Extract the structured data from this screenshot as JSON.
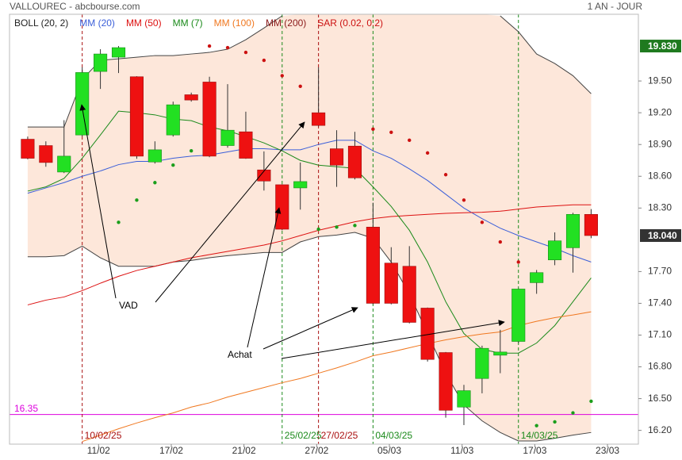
{
  "chart_data": {
    "type": "candlestick",
    "title": "VALLOUREC - abcbourse.com",
    "subtitle": "1 AN - JOUR",
    "categories": [
      null,
      null,
      null,
      null,
      null,
      null,
      null,
      null,
      null,
      null,
      null,
      null,
      null,
      null,
      null,
      null,
      null,
      null,
      null,
      null,
      null,
      null,
      null,
      null,
      null,
      null,
      null,
      null,
      null,
      null,
      null,
      null
    ],
    "open": [
      18.95,
      18.89,
      18.64,
      18.99,
      19.59,
      19.725,
      19.54,
      18.735,
      18.99,
      19.37,
      19.49,
      18.89,
      19.02,
      18.66,
      18.52,
      18.49,
      19.2,
      18.86,
      18.885,
      18.12,
      17.78,
      17.75,
      17.355,
      16.935,
      16.42,
      16.69,
      16.91,
      17.04,
      17.595,
      17.81,
      17.925,
      18.24
    ],
    "high": [
      18.975,
      18.93,
      19.13,
      19.63,
      19.8,
      19.83,
      19.545,
      18.93,
      19.305,
      19.39,
      19.54,
      19.47,
      19.21,
      18.835,
      18.525,
      18.73,
      19.63,
      19.035,
      19.02,
      18.35,
      17.93,
      17.94,
      17.36,
      16.94,
      16.63,
      17.0,
      17.15,
      17.54,
      17.715,
      18.07,
      18.255,
      18.29
    ],
    "low": [
      18.76,
      18.69,
      18.63,
      18.975,
      19.425,
      19.575,
      18.765,
      18.72,
      18.975,
      19.305,
      18.78,
      18.87,
      18.765,
      18.465,
      18.09,
      18.285,
      19.07,
      18.5,
      18.57,
      17.39,
      17.39,
      17.21,
      16.85,
      16.32,
      16.25,
      16.55,
      16.74,
      17.025,
      17.49,
      17.76,
      17.69,
      18.015
    ],
    "close": [
      18.77,
      18.73,
      18.79,
      19.58,
      19.755,
      19.815,
      18.79,
      18.85,
      19.275,
      19.32,
      18.79,
      19.035,
      18.77,
      18.555,
      18.1,
      18.55,
      19.08,
      18.705,
      18.585,
      17.4,
      17.4,
      17.22,
      16.87,
      16.39,
      16.575,
      16.975,
      16.94,
      17.535,
      17.69,
      17.99,
      18.24,
      18.04
    ],
    "up_color": "#22e022",
    "down_color": "#ee1111",
    "bollinger": {
      "name": "BOLL (20, 2)",
      "text_color": "#222",
      "color": "#444",
      "fill": "#fde7da",
      "upper": [
        19.065,
        19.065,
        19.065,
        19.515,
        19.695,
        19.71,
        19.725,
        19.74,
        19.74,
        19.755,
        19.77,
        19.8,
        19.89,
        20.0,
        20.115,
        null,
        null,
        null,
        null,
        null,
        null,
        null,
        null,
        null,
        null,
        null,
        20.115,
        19.965,
        19.755,
        19.665,
        19.55,
        19.38
      ],
      "lower": [
        17.84,
        17.84,
        17.85,
        17.94,
        17.83,
        17.75,
        17.75,
        17.75,
        17.79,
        17.805,
        17.83,
        17.85,
        17.865,
        17.88,
        17.88,
        17.98,
        18.03,
        18.045,
        18.07,
        18.015,
        17.79,
        17.49,
        17.115,
        16.74,
        16.44,
        16.29,
        16.18,
        16.1,
        16.1,
        16.125,
        16.155,
        16.18
      ]
    },
    "series": [
      {
        "name": "MM (20)",
        "color": "#3b5fd9",
        "values": [
          18.44,
          18.49,
          18.54,
          18.6,
          18.65,
          18.71,
          18.74,
          18.74,
          18.77,
          18.79,
          18.8,
          18.83,
          18.86,
          18.86,
          18.85,
          18.85,
          18.9,
          18.94,
          18.94,
          18.84,
          18.77,
          18.67,
          18.56,
          18.43,
          18.3,
          18.2,
          18.11,
          18.04,
          17.98,
          17.92,
          17.85,
          17.79
        ]
      },
      {
        "name": "MM (50)",
        "color": "#dd1111",
        "values": [
          17.385,
          17.43,
          17.46,
          17.52,
          17.59,
          17.655,
          17.71,
          17.75,
          17.79,
          17.83,
          17.86,
          17.89,
          17.92,
          17.95,
          17.99,
          18.04,
          18.09,
          18.13,
          18.17,
          18.2,
          18.22,
          18.23,
          18.24,
          18.25,
          18.255,
          18.26,
          18.27,
          18.29,
          18.31,
          18.32,
          18.33,
          18.33
        ]
      },
      {
        "name": "MM (7)",
        "color": "#1b8a1b",
        "values": [
          18.46,
          18.5,
          18.58,
          18.77,
          18.99,
          19.215,
          19.2,
          19.18,
          19.14,
          19.125,
          19.065,
          19.03,
          18.975,
          18.915,
          18.84,
          18.75,
          18.705,
          18.69,
          18.675,
          18.5,
          18.315,
          18.09,
          17.79,
          17.415,
          17.115,
          16.965,
          16.93,
          16.93,
          17.025,
          17.19,
          17.415,
          17.64
        ]
      },
      {
        "name": "MM (100)",
        "color": "#f07820",
        "values": [
          null,
          null,
          null,
          16.095,
          16.155,
          16.215,
          16.27,
          16.32,
          16.365,
          16.42,
          16.46,
          16.515,
          16.56,
          16.605,
          16.65,
          16.69,
          16.74,
          16.79,
          16.845,
          16.905,
          16.94,
          16.98,
          17.02,
          17.055,
          17.085,
          17.11,
          17.13,
          17.19,
          17.23,
          17.265,
          17.29,
          17.32
        ]
      },
      {
        "name": "MM (200)",
        "color": "#8b1a1a"
      }
    ],
    "sar": {
      "name": "SAR (0.02, 0.2)",
      "color": "#cc1111",
      "up_color": "#1b9e1b",
      "values": [
        null,
        null,
        null,
        null,
        null,
        18.165,
        18.375,
        18.54,
        18.705,
        18.84,
        19.83,
        19.815,
        19.77,
        19.695,
        19.55,
        19.45,
        18.1,
        18.12,
        18.135,
        19.045,
        19.015,
        18.94,
        18.82,
        18.615,
        18.375,
        18.165,
        17.98,
        17.79,
        16.245,
        16.28,
        16.365,
        16.475
      ]
    },
    "xlim": [
      -1,
      33.6
    ],
    "ylim": [
      16.07,
      20.13
    ],
    "xticks": [
      {
        "value": 3.9,
        "label": "11/02"
      },
      {
        "value": 7.9,
        "label": "17/02"
      },
      {
        "value": 11.9,
        "label": "21/02"
      },
      {
        "value": 15.9,
        "label": "27/02"
      },
      {
        "value": 19.9,
        "label": "05/03"
      },
      {
        "value": 23.9,
        "label": "11/03"
      },
      {
        "value": 27.9,
        "label": "17/03"
      },
      {
        "value": 31.9,
        "label": "23/03"
      }
    ],
    "yticks": [
      {
        "value": 16.2,
        "label": "16.20"
      },
      {
        "value": 16.5,
        "label": "16.50"
      },
      {
        "value": 16.8,
        "label": "16.80"
      },
      {
        "value": 17.1,
        "label": "17.10"
      },
      {
        "value": 17.4,
        "label": "17.40"
      },
      {
        "value": 17.7,
        "label": "17.70"
      },
      {
        "value": 18.3,
        "label": "18.30"
      },
      {
        "value": 18.6,
        "label": "18.60"
      },
      {
        "value": 18.9,
        "label": "18.90"
      },
      {
        "value": 19.2,
        "label": "19.20"
      },
      {
        "value": 19.5,
        "label": "19.50"
      }
    ],
    "price_labels": [
      {
        "value": 19.83,
        "label": "19.830",
        "color": "#1f7a1f"
      },
      {
        "value": 18.04,
        "label": "18.040",
        "color": "#333333"
      }
    ],
    "hline": {
      "value": 16.35,
      "label": "16.35",
      "color": "#dd00dd"
    },
    "vlines": [
      {
        "at": 3,
        "label": "10/02/25",
        "color": "#aa1111"
      },
      {
        "at": 14,
        "label": "25/02/25",
        "color": "#1b8a1b"
      },
      {
        "at": 16,
        "label": "27/02/25",
        "color": "#aa1111"
      },
      {
        "at": 19,
        "label": "04/03/25",
        "color": "#1b8a1b"
      },
      {
        "at": 27,
        "label": "14/03/25",
        "color": "#1b8a1b"
      }
    ],
    "annotations": [
      "VAD",
      "Achat"
    ]
  }
}
